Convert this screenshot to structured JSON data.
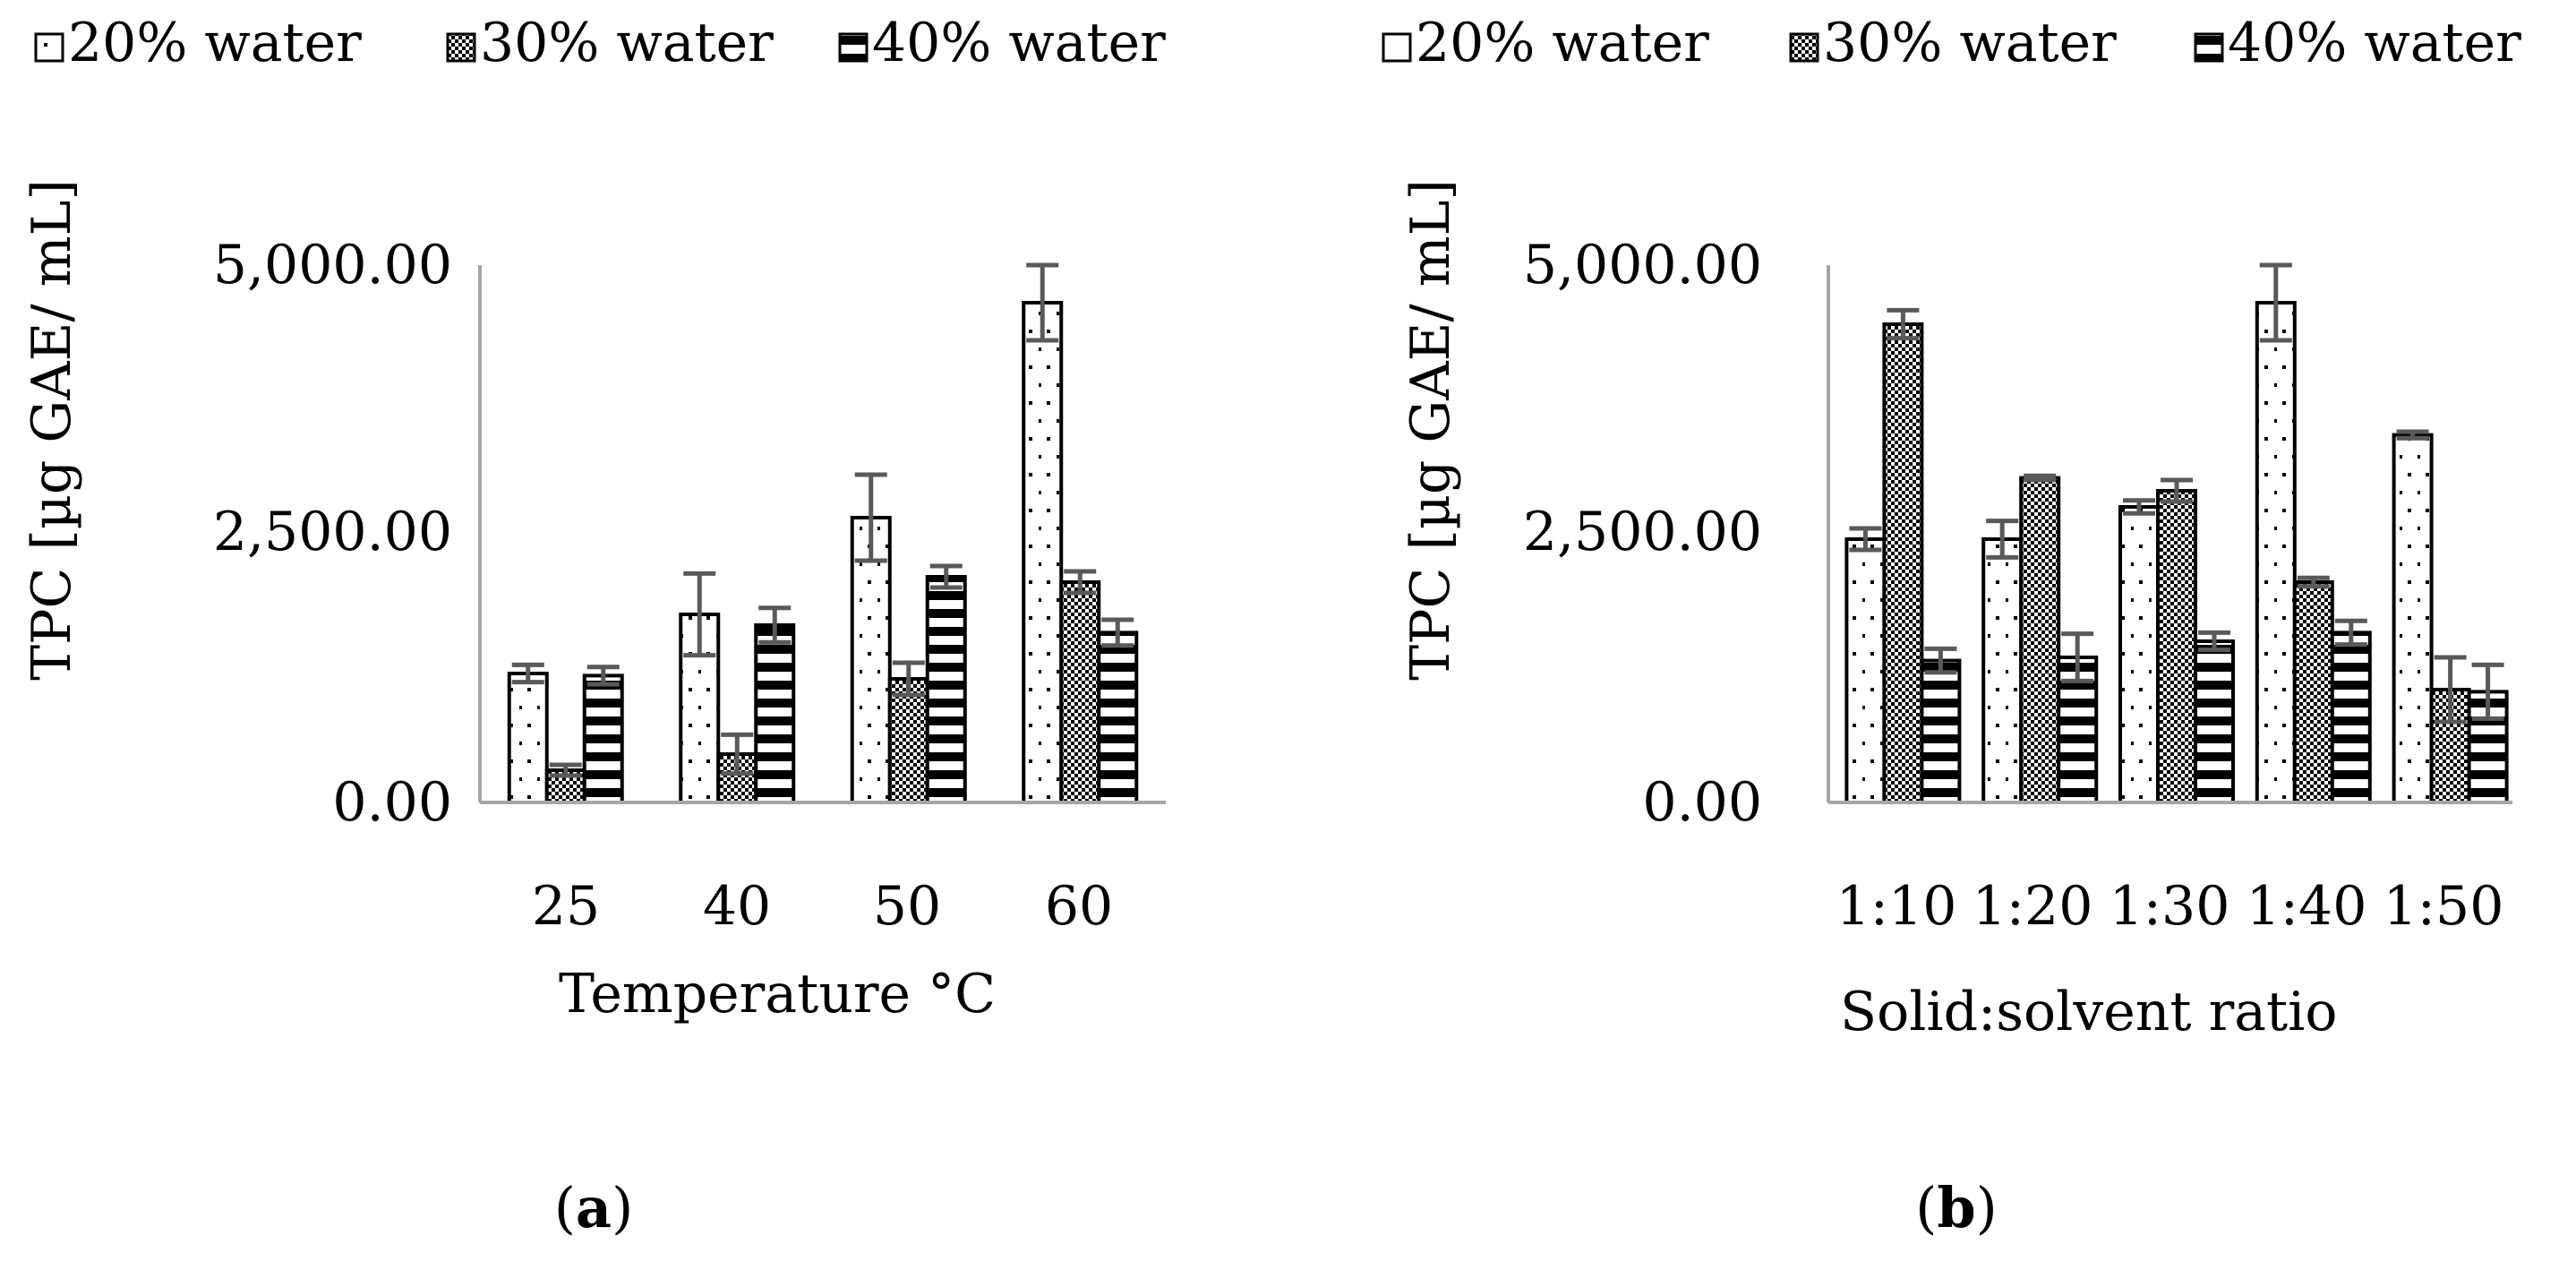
{
  "colors": {
    "axis": "#a6a6a6",
    "bar_stroke": "#000000",
    "error_bar": "#595959",
    "background": "#ffffff"
  },
  "chart_data": [
    {
      "type": "bar",
      "panel_label": "a",
      "title": "",
      "xlabel": "Temperature °C",
      "ylabel": "TPC [µg GAE/ mL]",
      "categories": [
        "25",
        "40",
        "50",
        "60"
      ],
      "ylim": [
        0,
        5000
      ],
      "yticks": [
        0,
        2500,
        5000
      ],
      "ytick_labels": [
        "0.00",
        "2,500.00",
        "5,000.00"
      ],
      "legend": {
        "position": "top",
        "entries": [
          "20% water",
          "30% water",
          "40% water"
        ]
      },
      "series": [
        {
          "name": "20% water",
          "pattern": "dots",
          "values": [
            1200,
            1750,
            2650,
            4650
          ],
          "errors": [
            80,
            380,
            400,
            350
          ]
        },
        {
          "name": "30% water",
          "pattern": "checker",
          "values": [
            300,
            450,
            1150,
            2050
          ],
          "errors": [
            50,
            180,
            150,
            100
          ]
        },
        {
          "name": "40% water",
          "pattern": "hstripes",
          "values": [
            1180,
            1650,
            2100,
            1580
          ],
          "errors": [
            80,
            160,
            100,
            120
          ]
        }
      ]
    },
    {
      "type": "bar",
      "panel_label": "b",
      "title": "",
      "xlabel": "Solid:solvent ratio",
      "ylabel": "TPC [µg GAE/ mL]",
      "categories": [
        "1:10",
        "1:20",
        "1:30",
        "1:40",
        "1:50"
      ],
      "ylim": [
        0,
        5000
      ],
      "yticks": [
        0,
        2500,
        5000
      ],
      "ytick_labels": [
        "0.00",
        "2,500.00",
        "5,000.00"
      ],
      "legend": {
        "position": "top",
        "entries": [
          "20% water",
          "30% water",
          "40% water"
        ]
      },
      "series": [
        {
          "name": "20% water",
          "pattern": "dots",
          "values": [
            2450,
            2450,
            2750,
            4650,
            3420
          ],
          "errors": [
            100,
            170,
            60,
            350,
            30
          ]
        },
        {
          "name": "30% water",
          "pattern": "checker",
          "values": [
            4450,
            3020,
            2900,
            2050,
            1050
          ],
          "errors": [
            130,
            20,
            100,
            40,
            300
          ]
        },
        {
          "name": "40% water",
          "pattern": "hstripes",
          "values": [
            1320,
            1350,
            1500,
            1580,
            1030
          ],
          "errors": [
            110,
            220,
            80,
            110,
            250
          ]
        }
      ]
    }
  ]
}
